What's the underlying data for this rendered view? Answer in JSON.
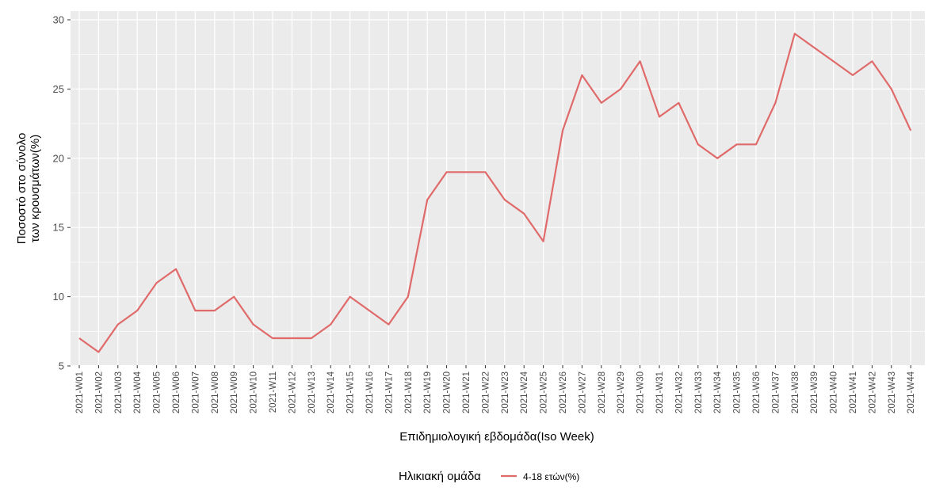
{
  "chart_data": {
    "type": "line",
    "xlabel": "Επιδημιολογική εβδομάδα(Iso Week)",
    "ylabel_line1": "Ποσοστό στο σύνολο",
    "ylabel_line2": "των κρουσμάτων(%)",
    "ylim": [
      5,
      30
    ],
    "yticks": [
      5,
      10,
      15,
      20,
      25,
      30
    ],
    "grid": true,
    "legend_placement": "bottom",
    "legend_title": "Ηλικιακή ομάδα",
    "categories": [
      "2021-W01",
      "2021-W02",
      "2021-W03",
      "2021-W04",
      "2021-W05",
      "2021-W06",
      "2021-W07",
      "2021-W08",
      "2021-W09",
      "2021-W10",
      "2021-W11",
      "2021-W12",
      "2021-W13",
      "2021-W14",
      "2021-W15",
      "2021-W16",
      "2021-W17",
      "2021-W18",
      "2021-W19",
      "2021-W20",
      "2021-W21",
      "2021-W22",
      "2021-W23",
      "2021-W24",
      "2021-W25",
      "2021-W26",
      "2021-W27",
      "2021-W28",
      "2021-W29",
      "2021-W30",
      "2021-W31",
      "2021-W32",
      "2021-W33",
      "2021-W34",
      "2021-W35",
      "2021-W36",
      "2021-W37",
      "2021-W38",
      "2021-W39",
      "2021-W40",
      "2021-W41",
      "2021-W42",
      "2021-W43",
      "2021-W44"
    ],
    "series": [
      {
        "name": "4-18 ετών(%)",
        "color": "#e06a6a",
        "values": [
          7,
          6,
          8,
          9,
          11,
          12,
          9,
          9,
          10,
          8,
          7,
          7,
          7,
          8,
          10,
          9,
          8,
          10,
          17,
          19,
          19,
          19,
          17,
          16,
          14,
          22,
          26,
          24,
          25,
          27,
          23,
          24,
          21,
          20,
          21,
          21,
          24,
          29,
          28,
          27,
          26,
          27,
          25,
          22
        ]
      }
    ],
    "panel_color": "#ebebeb",
    "grid_color": "#ffffff"
  }
}
